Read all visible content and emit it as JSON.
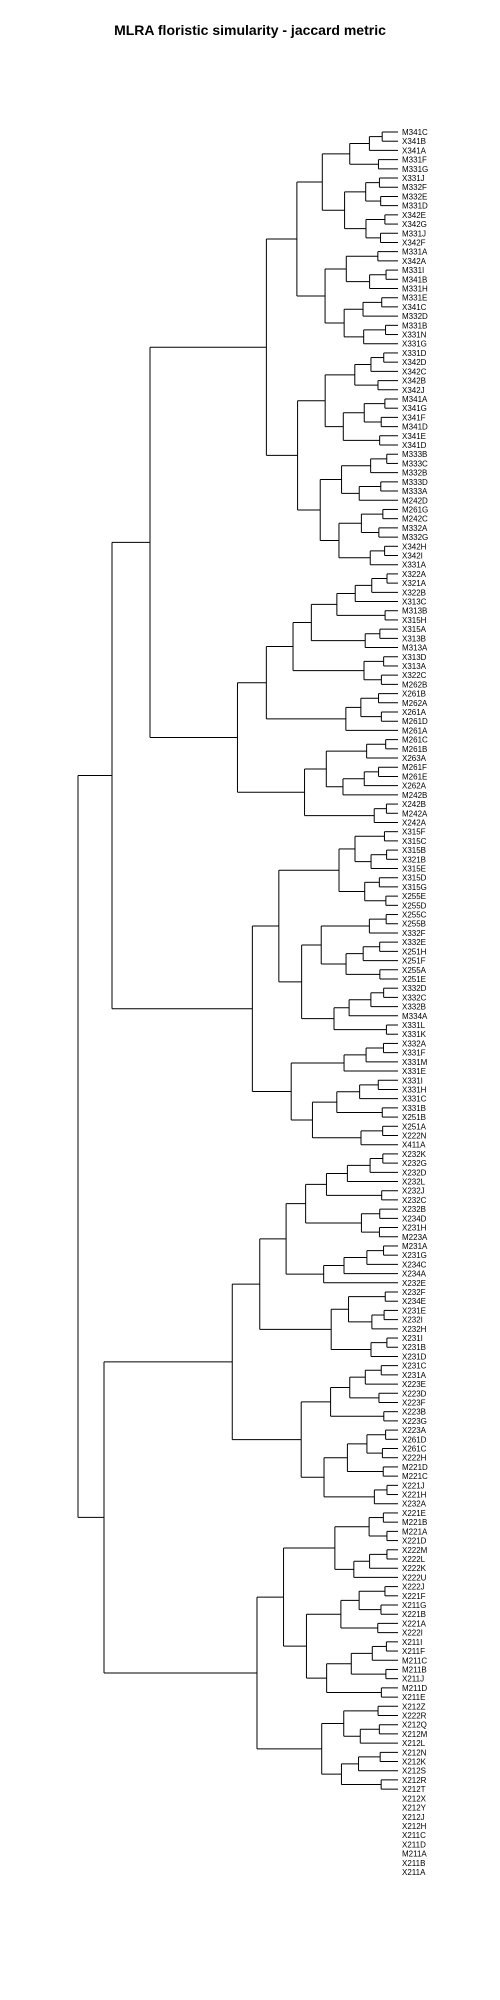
{
  "chart_data": {
    "type": "dendrogram",
    "title": "MLRA floristic simularity - jaccard metric",
    "xlabel": "",
    "ylabel": "",
    "leaves": [
      "M341C",
      "X341B",
      "X341A",
      "M331F",
      "M331G",
      "X331J",
      "M332F",
      "M332E",
      "M331D",
      "X342E",
      "X342G",
      "M331J",
      "X342F",
      "M331A",
      "X342A",
      "M331I",
      "M341B",
      "M331H",
      "M331E",
      "X341C",
      "M332D",
      "M331B",
      "X331N",
      "X331G",
      "X331D",
      "X342D",
      "X342C",
      "X342B",
      "X342J",
      "M341A",
      "X341G",
      "X341F",
      "M341D",
      "X341E",
      "X341D",
      "M333B",
      "M333C",
      "M332B",
      "M333D",
      "M333A",
      "M242D",
      "M261G",
      "M242C",
      "M332A",
      "M332G",
      "X342H",
      "X342I",
      "X331A",
      "X322A",
      "X321A",
      "X322B",
      "X313C",
      "M313B",
      "X315H",
      "X315A",
      "X313B",
      "M313A",
      "X313D",
      "X313A",
      "X322C",
      "M262B",
      "X261B",
      "M262A",
      "X261A",
      "M261D",
      "M261A",
      "M261C",
      "M261B",
      "X263A",
      "M261F",
      "M261E",
      "X262A",
      "M242B",
      "X242B",
      "M242A",
      "X242A",
      "X315F",
      "X315C",
      "X315B",
      "X321B",
      "X315E",
      "X315D",
      "X315G",
      "X255E",
      "X255D",
      "X255C",
      "X255B",
      "X332F",
      "X332E",
      "X251H",
      "X251F",
      "X255A",
      "X251E",
      "X332D",
      "X332C",
      "X332B",
      "M334A",
      "X331L",
      "X331K",
      "X332A",
      "X331F",
      "X331M",
      "X331E",
      "X331I",
      "X331H",
      "X331C",
      "X331B",
      "X251B",
      "X251A",
      "X222N",
      "X411A",
      "X232K",
      "X232G",
      "X232D",
      "X232L",
      "X232J",
      "X232C",
      "X232B",
      "X234D",
      "X231H",
      "M223A",
      "M231A",
      "X231G",
      "X234C",
      "X234A",
      "X232E",
      "X232F",
      "X234E",
      "X231E",
      "X232I",
      "X232H",
      "X231I",
      "X231B",
      "X231D",
      "X231C",
      "X231A",
      "X223E",
      "X223D",
      "X223F",
      "X223B",
      "X223G",
      "X223A",
      "X261D",
      "X261C",
      "X222H",
      "M221D",
      "M221C",
      "X221J",
      "X221H",
      "X232A",
      "X221E",
      "M221B",
      "M221A",
      "X221D",
      "X222M",
      "X222L",
      "X222K",
      "X222U",
      "X222J",
      "X221F",
      "X211G",
      "X221B",
      "X221A",
      "X222I",
      "X211I",
      "X211F",
      "M211C",
      "M211B",
      "X211J",
      "M211D",
      "X211E",
      "X212Z",
      "X222R",
      "X212Q",
      "X212M",
      "X212L",
      "X212N",
      "X212K",
      "X212S",
      "X212R",
      "X212T",
      "X212X",
      "X212Y",
      "X212J",
      "X212H",
      "X211C",
      "X211D",
      "M211A",
      "X211B",
      "X211A"
    ]
  }
}
